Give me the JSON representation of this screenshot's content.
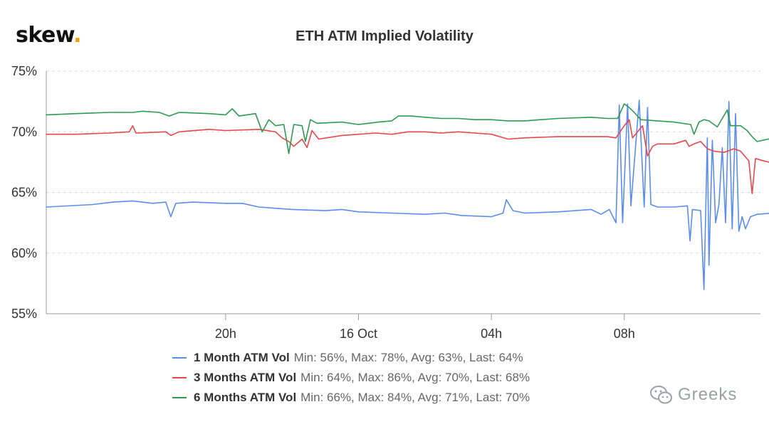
{
  "brand": {
    "name": "skew",
    "dot": ".",
    "dot_color": "#f2a100"
  },
  "watermark": {
    "text": "Greeks",
    "icon": "wechat-icon"
  },
  "chart_data": {
    "type": "line",
    "title": "ETH ATM Implied Volatility",
    "xlabel": "",
    "ylabel": "",
    "x_ticks": [
      "20h",
      "16 Oct",
      "04h",
      "08h"
    ],
    "x_tick_hours": [
      4,
      8,
      12,
      16
    ],
    "x_range_hours": [
      -1.4,
      20.1
    ],
    "ylim": [
      55,
      75
    ],
    "y_ticks": [
      55,
      60,
      65,
      70,
      75
    ],
    "y_tick_labels": [
      "55%",
      "60%",
      "65%",
      "70%",
      "75%"
    ],
    "grid": true,
    "legend_position": "bottom",
    "series": [
      {
        "name": "1 Month ATM Vol",
        "stats": "Min: 56%, Max: 78%, Avg: 63%, Last: 64%",
        "color": "#5b8def",
        "points": [
          [
            -1.4,
            63.8
          ],
          [
            0,
            64.0
          ],
          [
            0.6,
            64.2
          ],
          [
            1.2,
            64.3
          ],
          [
            1.8,
            64.1
          ],
          [
            2.2,
            64.2
          ],
          [
            2.35,
            63.0
          ],
          [
            2.5,
            64.1
          ],
          [
            3.0,
            64.2
          ],
          [
            4.0,
            64.1
          ],
          [
            4.5,
            64.1
          ],
          [
            5.0,
            63.8
          ],
          [
            6.0,
            63.6
          ],
          [
            7.0,
            63.5
          ],
          [
            7.5,
            63.6
          ],
          [
            8.0,
            63.4
          ],
          [
            9.0,
            63.3
          ],
          [
            10.0,
            63.2
          ],
          [
            10.6,
            63.3
          ],
          [
            11.1,
            63.1
          ],
          [
            12.0,
            63.0
          ],
          [
            12.35,
            63.3
          ],
          [
            12.45,
            64.4
          ],
          [
            12.65,
            63.5
          ],
          [
            13.0,
            63.3
          ],
          [
            14.0,
            63.4
          ],
          [
            15.0,
            63.6
          ],
          [
            15.3,
            63.2
          ],
          [
            15.55,
            63.6
          ],
          [
            15.75,
            62.5
          ],
          [
            15.85,
            72.2
          ],
          [
            15.95,
            62.5
          ],
          [
            16.1,
            72.3
          ],
          [
            16.2,
            63.9
          ],
          [
            16.45,
            72.6
          ],
          [
            16.6,
            63.8
          ],
          [
            16.7,
            72.0
          ],
          [
            16.8,
            64.0
          ],
          [
            17.0,
            63.8
          ],
          [
            17.5,
            63.8
          ],
          [
            17.9,
            63.9
          ],
          [
            17.98,
            61.0
          ],
          [
            18.05,
            63.6
          ],
          [
            18.3,
            63.5
          ],
          [
            18.4,
            57.0
          ],
          [
            18.5,
            69.5
          ],
          [
            18.55,
            59.0
          ],
          [
            18.65,
            69.3
          ],
          [
            18.75,
            62.5
          ],
          [
            18.85,
            64.0
          ],
          [
            18.95,
            68.7
          ],
          [
            19.05,
            62.5
          ],
          [
            19.15,
            72.5
          ],
          [
            19.25,
            62.0
          ],
          [
            19.35,
            71.5
          ],
          [
            19.45,
            61.8
          ],
          [
            19.55,
            63.0
          ],
          [
            19.65,
            62.0
          ],
          [
            19.8,
            63.0
          ],
          [
            20.0,
            63.2
          ],
          [
            20.5,
            63.3
          ],
          [
            21.0,
            63.4
          ],
          [
            21.5,
            63.6
          ],
          [
            21.7,
            63.8
          ],
          [
            21.8,
            63.5
          ]
        ]
      },
      {
        "name": "3 Months ATM Vol",
        "stats": "Min: 64%, Max: 86%, Avg: 70%, Last: 68%",
        "color": "#e8464a",
        "points": [
          [
            -1.4,
            69.8
          ],
          [
            -0.5,
            69.8
          ],
          [
            0.5,
            69.9
          ],
          [
            1.1,
            70.0
          ],
          [
            1.2,
            70.5
          ],
          [
            1.3,
            69.9
          ],
          [
            2.2,
            70.0
          ],
          [
            2.35,
            69.7
          ],
          [
            2.6,
            70.0
          ],
          [
            3.5,
            70.2
          ],
          [
            4.0,
            70.1
          ],
          [
            5.0,
            70.2
          ],
          [
            5.5,
            70.0
          ],
          [
            5.7,
            69.5
          ],
          [
            5.9,
            69.2
          ],
          [
            6.05,
            68.8
          ],
          [
            6.3,
            69.4
          ],
          [
            6.45,
            68.7
          ],
          [
            6.6,
            70.1
          ],
          [
            6.8,
            69.4
          ],
          [
            7.5,
            69.7
          ],
          [
            8.0,
            69.8
          ],
          [
            8.5,
            69.9
          ],
          [
            9.0,
            69.8
          ],
          [
            9.5,
            70.0
          ],
          [
            10.0,
            70.0
          ],
          [
            10.5,
            69.9
          ],
          [
            11.0,
            70.0
          ],
          [
            11.5,
            69.9
          ],
          [
            12.0,
            69.8
          ],
          [
            12.5,
            69.4
          ],
          [
            13.0,
            69.5
          ],
          [
            14.0,
            69.6
          ],
          [
            15.0,
            69.6
          ],
          [
            15.5,
            69.6
          ],
          [
            15.75,
            69.5
          ],
          [
            16.0,
            70.5
          ],
          [
            16.15,
            71.0
          ],
          [
            16.25,
            69.5
          ],
          [
            16.55,
            70.5
          ],
          [
            16.7,
            68.0
          ],
          [
            16.85,
            68.8
          ],
          [
            17.0,
            69.0
          ],
          [
            17.5,
            69.0
          ],
          [
            17.85,
            69.3
          ],
          [
            17.95,
            68.8
          ],
          [
            18.1,
            69.0
          ],
          [
            18.3,
            69.2
          ],
          [
            18.5,
            68.6
          ],
          [
            18.7,
            68.4
          ],
          [
            19.0,
            68.3
          ],
          [
            19.3,
            68.6
          ],
          [
            19.5,
            68.4
          ],
          [
            19.75,
            67.6
          ],
          [
            19.85,
            64.9
          ],
          [
            19.95,
            67.8
          ],
          [
            20.2,
            67.6
          ],
          [
            20.5,
            67.4
          ],
          [
            21.0,
            67.5
          ],
          [
            21.4,
            67.6
          ],
          [
            21.6,
            67.9
          ],
          [
            21.7,
            68.1
          ],
          [
            21.8,
            67.9
          ]
        ]
      },
      {
        "name": "6 Months ATM Vol",
        "stats": "Min: 66%, Max: 84%, Avg: 71%, Last: 70%",
        "color": "#2e9b52",
        "points": [
          [
            -1.4,
            71.4
          ],
          [
            -0.5,
            71.5
          ],
          [
            0.5,
            71.6
          ],
          [
            1.2,
            71.6
          ],
          [
            1.5,
            71.7
          ],
          [
            2.0,
            71.6
          ],
          [
            2.3,
            71.3
          ],
          [
            2.6,
            71.6
          ],
          [
            3.5,
            71.5
          ],
          [
            4.0,
            71.4
          ],
          [
            4.2,
            71.9
          ],
          [
            4.4,
            71.3
          ],
          [
            4.9,
            71.5
          ],
          [
            5.1,
            70.0
          ],
          [
            5.3,
            71.0
          ],
          [
            5.5,
            70.5
          ],
          [
            5.75,
            70.6
          ],
          [
            5.9,
            68.2
          ],
          [
            6.05,
            70.6
          ],
          [
            6.3,
            70.5
          ],
          [
            6.4,
            69.2
          ],
          [
            6.55,
            71.0
          ],
          [
            6.75,
            70.7
          ],
          [
            7.5,
            70.8
          ],
          [
            8.0,
            70.6
          ],
          [
            8.6,
            70.8
          ],
          [
            9.0,
            70.9
          ],
          [
            9.2,
            71.3
          ],
          [
            9.6,
            71.3
          ],
          [
            10.0,
            71.2
          ],
          [
            10.5,
            71.1
          ],
          [
            11.0,
            71.1
          ],
          [
            11.5,
            71.0
          ],
          [
            12.0,
            71.0
          ],
          [
            12.5,
            70.9
          ],
          [
            13.0,
            70.9
          ],
          [
            14.0,
            71.1
          ],
          [
            15.0,
            71.2
          ],
          [
            15.5,
            71.1
          ],
          [
            15.8,
            71.1
          ],
          [
            16.0,
            72.3
          ],
          [
            16.15,
            72.0
          ],
          [
            16.3,
            71.6
          ],
          [
            16.5,
            71.0
          ],
          [
            17.0,
            70.9
          ],
          [
            17.5,
            70.8
          ],
          [
            18.0,
            70.6
          ],
          [
            18.1,
            69.8
          ],
          [
            18.25,
            70.8
          ],
          [
            18.4,
            71.0
          ],
          [
            18.55,
            70.9
          ],
          [
            18.8,
            70.4
          ],
          [
            19.1,
            71.8
          ],
          [
            19.2,
            70.5
          ],
          [
            19.5,
            70.5
          ],
          [
            19.7,
            70.1
          ],
          [
            19.85,
            69.6
          ],
          [
            20.0,
            69.2
          ],
          [
            20.5,
            69.5
          ],
          [
            21.0,
            69.4
          ],
          [
            21.5,
            69.4
          ],
          [
            21.7,
            69.7
          ],
          [
            21.8,
            69.6
          ]
        ]
      }
    ]
  }
}
